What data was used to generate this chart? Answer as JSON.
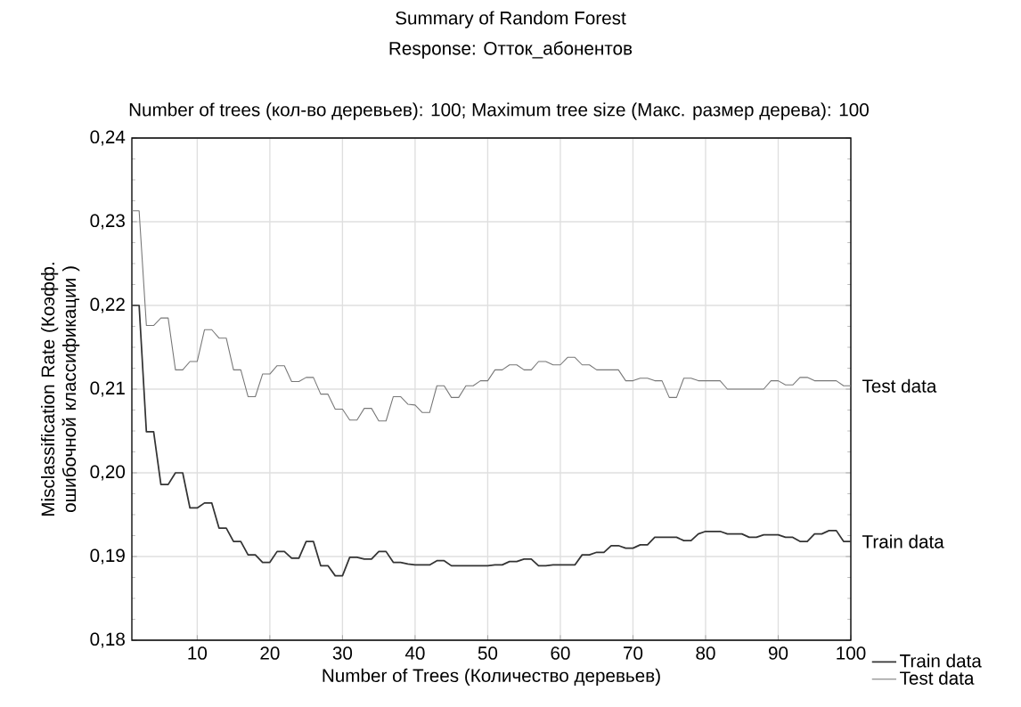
{
  "chart_data": {
    "type": "line",
    "title": "Summary of Random Forest",
    "subtitle": "Response: Отток_абонентов",
    "xlabel": "Number of Trees (Количество деревьев)",
    "ylabel": "Misclassification Rate (Коэфф. ошибочной классификации )",
    "x": [
      1,
      2,
      3,
      4,
      5,
      6,
      7,
      8,
      9,
      10,
      11,
      12,
      13,
      14,
      15,
      16,
      17,
      18,
      19,
      20,
      21,
      22,
      23,
      24,
      25,
      26,
      27,
      28,
      29,
      30,
      31,
      32,
      33,
      34,
      35,
      36,
      37,
      38,
      39,
      40,
      41,
      42,
      43,
      44,
      45,
      46,
      47,
      48,
      49,
      50,
      51,
      52,
      53,
      54,
      55,
      56,
      57,
      58,
      59,
      60,
      61,
      62,
      63,
      64,
      65,
      66,
      67,
      68,
      69,
      70,
      71,
      72,
      73,
      74,
      75,
      76,
      77,
      78,
      79,
      80,
      81,
      82,
      83,
      84,
      85,
      86,
      87,
      88,
      89,
      90,
      91,
      92,
      93,
      94,
      95,
      96,
      97,
      98,
      99,
      100
    ],
    "series": [
      {
        "name": "Train data",
        "color": "#333333",
        "values": [
          0.22,
          0.22,
          0.2049,
          0.2049,
          0.1986,
          0.1986,
          0.2,
          0.2,
          0.1958,
          0.1958,
          0.1964,
          0.1964,
          0.1934,
          0.1934,
          0.1918,
          0.1918,
          0.1902,
          0.1902,
          0.1893,
          0.1893,
          0.1906,
          0.1906,
          0.1898,
          0.1898,
          0.1918,
          0.1918,
          0.1889,
          0.1889,
          0.1877,
          0.1877,
          0.1899,
          0.1899,
          0.1897,
          0.1897,
          0.1906,
          0.1906,
          0.1893,
          0.1893,
          0.1891,
          0.189,
          0.189,
          0.189,
          0.1895,
          0.1895,
          0.1889,
          0.1889,
          0.1889,
          0.1889,
          0.1889,
          0.1889,
          0.189,
          0.189,
          0.1894,
          0.1894,
          0.1897,
          0.1897,
          0.1889,
          0.1889,
          0.189,
          0.189,
          0.189,
          0.189,
          0.1902,
          0.1902,
          0.1905,
          0.1905,
          0.1913,
          0.1913,
          0.191,
          0.191,
          0.1914,
          0.1914,
          0.1923,
          0.1923,
          0.1923,
          0.1923,
          0.1919,
          0.1919,
          0.1927,
          0.193,
          0.193,
          0.193,
          0.1927,
          0.1927,
          0.1927,
          0.1923,
          0.1923,
          0.1926,
          0.1926,
          0.1926,
          0.1923,
          0.1923,
          0.1918,
          0.1918,
          0.1927,
          0.1927,
          0.1931,
          0.1931,
          0.1918,
          0.1918
        ]
      },
      {
        "name": "Test data",
        "color": "#777777",
        "values": [
          0.2313,
          0.2313,
          0.2176,
          0.2176,
          0.2185,
          0.2185,
          0.2123,
          0.2123,
          0.2133,
          0.2133,
          0.2171,
          0.2171,
          0.2161,
          0.2161,
          0.2123,
          0.2123,
          0.2091,
          0.2091,
          0.2118,
          0.2118,
          0.2128,
          0.2128,
          0.2109,
          0.2109,
          0.2114,
          0.2114,
          0.2094,
          0.2094,
          0.2076,
          0.2076,
          0.2063,
          0.2063,
          0.2077,
          0.2077,
          0.2062,
          0.2062,
          0.2091,
          0.2091,
          0.2082,
          0.2081,
          0.2072,
          0.2072,
          0.2104,
          0.2104,
          0.209,
          0.209,
          0.2104,
          0.2104,
          0.211,
          0.211,
          0.2123,
          0.2123,
          0.2129,
          0.2129,
          0.2123,
          0.2123,
          0.2133,
          0.2133,
          0.2129,
          0.2129,
          0.2138,
          0.2138,
          0.2129,
          0.2129,
          0.2123,
          0.2123,
          0.2123,
          0.2123,
          0.211,
          0.211,
          0.2113,
          0.2113,
          0.211,
          0.211,
          0.209,
          0.209,
          0.2113,
          0.2113,
          0.211,
          0.211,
          0.211,
          0.211,
          0.21,
          0.21,
          0.21,
          0.21,
          0.21,
          0.21,
          0.211,
          0.211,
          0.2105,
          0.2105,
          0.2114,
          0.2114,
          0.211,
          0.211,
          0.211,
          0.211,
          0.2104,
          0.2104
        ]
      }
    ],
    "xlim": [
      1,
      100
    ],
    "ylim": [
      0.18,
      0.24
    ],
    "xticks": [
      10,
      20,
      30,
      40,
      50,
      60,
      70,
      80,
      90,
      100
    ],
    "yticks": [
      {
        "value": 0.18,
        "label": "0,18"
      },
      {
        "value": 0.19,
        "label": "0,19"
      },
      {
        "value": 0.2,
        "label": "0,20"
      },
      {
        "value": 0.21,
        "label": "0,21"
      },
      {
        "value": 0.22,
        "label": "0,22"
      },
      {
        "value": 0.23,
        "label": "0,23"
      },
      {
        "value": 0.24,
        "label": "0,24"
      }
    ],
    "annotations": [
      "Number of trees (кол-во деревьев): 100; Maximum tree size (Макс. размер дерева): 100",
      {
        "text": "Test data",
        "x": 100,
        "y": 0.2104
      },
      {
        "text": "Train data",
        "x": 100,
        "y": 0.1918
      }
    ],
    "grid": true,
    "legend": "bottom right",
    "marker": "none",
    "line_style": "solid"
  }
}
